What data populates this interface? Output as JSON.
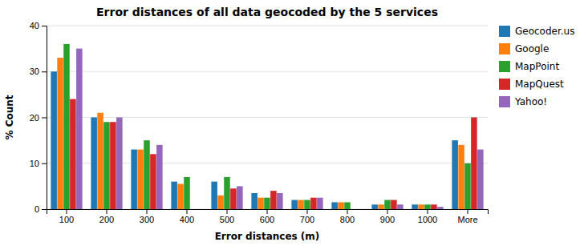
{
  "chart_data": {
    "type": "bar",
    "title": "Error distances of all data geocoded by the 5 services",
    "xlabel": "Error distances (m)",
    "ylabel": "% Count",
    "categories": [
      "100",
      "200",
      "300",
      "400",
      "500",
      "600",
      "700",
      "800",
      "900",
      "1000",
      "More"
    ],
    "series": [
      {
        "name": "Geocoder.us",
        "values": [
          30,
          20,
          13,
          6,
          6,
          3.5,
          2,
          1.5,
          1,
          1,
          15
        ]
      },
      {
        "name": "Google",
        "values": [
          33,
          21,
          13,
          5.5,
          3,
          2.5,
          2,
          1.5,
          1,
          1,
          14
        ]
      },
      {
        "name": "MapPoint",
        "values": [
          36,
          19,
          15,
          7,
          7,
          2.5,
          2,
          1.5,
          2,
          1,
          10
        ]
      },
      {
        "name": "MapQuest",
        "values": [
          24,
          19,
          12,
          0,
          4.5,
          4,
          2.5,
          0,
          2,
          1,
          20
        ]
      },
      {
        "name": "Yahoo!",
        "values": [
          35,
          20,
          14,
          0,
          5,
          3.5,
          2.5,
          0,
          1,
          0.5,
          13
        ]
      }
    ],
    "ylim": [
      0,
      40
    ],
    "yticks": [
      0,
      10,
      20,
      30,
      40
    ],
    "grid": true,
    "legend": "right"
  }
}
